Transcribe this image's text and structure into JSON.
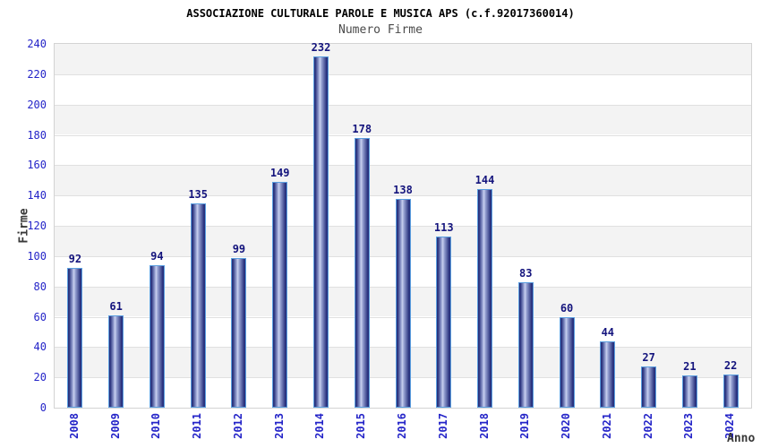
{
  "header": {
    "title": "ASSOCIAZIONE CULTURALE PAROLE E MUSICA APS (c.f.92017360014)",
    "subtitle": "Numero Firme"
  },
  "chart_data": {
    "type": "bar",
    "title": "ASSOCIAZIONE CULTURALE PAROLE E MUSICA APS (c.f.92017360014)",
    "subtitle": "Numero Firme",
    "xlabel": "Anno",
    "ylabel": "Firme",
    "categories": [
      "2008",
      "2009",
      "2010",
      "2011",
      "2012",
      "2013",
      "2014",
      "2015",
      "2016",
      "2017",
      "2018",
      "2019",
      "2020",
      "2021",
      "2022",
      "2023",
      "2024"
    ],
    "values": [
      92,
      61,
      94,
      135,
      99,
      149,
      232,
      178,
      138,
      113,
      144,
      83,
      60,
      44,
      27,
      21,
      22
    ],
    "ylim": [
      0,
      240
    ],
    "ytick_step": 20,
    "grid": "horizontal-bands-alternating",
    "legend": "none",
    "colors": {
      "axis_tick_text": "#2424c8",
      "value_label": "#14147d",
      "title_text": "#000000",
      "subtitle_text": "#4a4a4a",
      "axis_title_text": "#383838",
      "band_gray": "#f3f3f3",
      "band_white": "#ffffff",
      "gridline": "#e0e0e0",
      "plot_border": "#d3d3d3",
      "bar_border": "#5b9fe0",
      "bar_dark": "#28317d",
      "bar_mid": "#98a3d3",
      "bar_light": "#cad2f0"
    }
  }
}
